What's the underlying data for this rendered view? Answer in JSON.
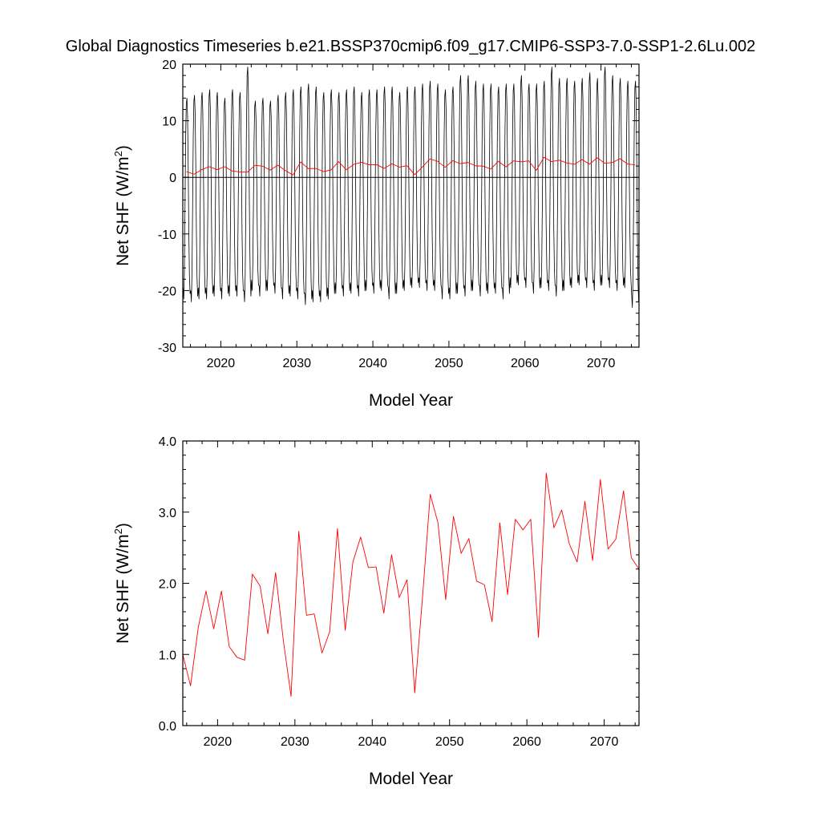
{
  "figure_title": "Global Diagnostics Timeseries b.e21.BSSP370cmip6.f09_g17.CMIP6-SSP3-7.0-SSP1-2.6Lu.002",
  "chart_data": [
    {
      "type": "line",
      "xlabel": "Model Year",
      "ylabel": "Net SHF (W/m",
      "ylabel_sup": "2",
      "ylabel_close": ")",
      "xlim": [
        2015,
        2075
      ],
      "ylim": [
        -30,
        20
      ],
      "xticks": [
        2020,
        2030,
        2040,
        2050,
        2060,
        2070
      ],
      "xtick_labels": [
        "2020",
        "2030",
        "2040",
        "2050",
        "2060",
        "2070"
      ],
      "yticks": [
        -30,
        -20,
        -10,
        0,
        10,
        20
      ],
      "ytick_labels": [
        "-30",
        "-20",
        "-10",
        "0",
        "10",
        "20"
      ],
      "zero_line": 0,
      "series": [
        {
          "color": "#000000",
          "kind": "monthly",
          "start_year": 2015,
          "month_pattern": [
            -20,
            -22,
            -17,
            -5,
            7,
            13,
            14,
            11,
            2,
            -10,
            -18,
            -21
          ],
          "annual_peak": [
            14,
            14.5,
            15,
            15.5,
            15,
            14,
            15.5,
            15,
            19.5,
            13.5,
            14,
            13.5,
            14.5,
            15,
            15.5,
            16,
            16.5,
            16,
            15,
            15.5,
            15,
            15.5,
            16,
            15,
            15.5,
            15.5,
            16,
            16,
            15,
            16,
            16,
            16.5,
            17,
            16.5,
            15.5,
            16,
            18,
            18,
            17,
            16.5,
            16.5,
            16,
            16.5,
            16.5,
            18,
            16.5,
            16.5,
            17,
            19.5,
            17.5,
            17.5,
            17,
            17.5,
            18.5,
            17.5,
            19.5,
            18,
            17.5,
            17,
            17
          ],
          "annual_trough": [
            -21.5,
            -22,
            -21.5,
            -21.5,
            -21,
            -21.5,
            -21,
            -21,
            -22,
            -20,
            -21,
            -20,
            -20.5,
            -21.5,
            -21,
            -21.5,
            -22.5,
            -22,
            -22,
            -21.5,
            -20.5,
            -21,
            -20.5,
            -21,
            -20,
            -20.5,
            -20,
            -21.5,
            -20.5,
            -20,
            -19.5,
            -19.5,
            -20,
            -20,
            -21.5,
            -21.5,
            -20.5,
            -21,
            -20,
            -21,
            -20.5,
            -20.5,
            -21.5,
            -19.5,
            -19,
            -19.5,
            -20.5,
            -19.5,
            -20,
            -21,
            -20,
            -19.5,
            -19,
            -19.5,
            -20,
            -19,
            -19.5,
            -20,
            -19.5,
            -23
          ]
        },
        {
          "color": "#ff0000",
          "kind": "annual",
          "x": [
            2015.5,
            2016.5,
            2017.5,
            2018.5,
            2019.5,
            2020.5,
            2021.5,
            2022.5,
            2023.5,
            2024.5,
            2025.5,
            2026.5,
            2027.5,
            2028.5,
            2029.5,
            2030.5,
            2031.5,
            2032.5,
            2033.5,
            2034.5,
            2035.5,
            2036.5,
            2037.5,
            2038.5,
            2039.5,
            2040.5,
            2041.5,
            2042.5,
            2043.5,
            2044.5,
            2045.5,
            2046.5,
            2047.5,
            2048.5,
            2049.5,
            2050.5,
            2051.5,
            2052.5,
            2053.5,
            2054.5,
            2055.5,
            2056.5,
            2057.5,
            2058.5,
            2059.5,
            2060.5,
            2061.5,
            2062.5,
            2063.5,
            2064.5,
            2065.5,
            2066.5,
            2067.5,
            2068.5,
            2069.5,
            2070.5,
            2071.5,
            2072.5,
            2073.5,
            2074.5
          ],
          "y": [
            1.0,
            0.56,
            1.38,
            1.89,
            1.36,
            1.89,
            1.11,
            0.96,
            0.92,
            2.13,
            1.96,
            1.29,
            2.15,
            1.2,
            0.41,
            2.73,
            1.55,
            1.57,
            1.02,
            1.32,
            2.77,
            1.34,
            2.3,
            2.65,
            2.22,
            2.23,
            1.58,
            2.4,
            1.8,
            2.05,
            0.46,
            1.8,
            3.25,
            2.85,
            1.77,
            2.94,
            2.42,
            2.63,
            2.03,
            1.98,
            1.46,
            2.85,
            1.84,
            2.9,
            2.75,
            2.9,
            1.24,
            3.55,
            2.78,
            3.03,
            2.55,
            2.3,
            3.15,
            2.32,
            3.46,
            2.48,
            2.62,
            3.3,
            2.36,
            2.2
          ]
        }
      ]
    },
    {
      "type": "line",
      "xlabel": "Model Year",
      "ylabel": "Net SHF (W/m",
      "ylabel_sup": "2",
      "ylabel_close": ")",
      "xlim": [
        2015.5,
        2074.5
      ],
      "ylim": [
        0,
        4
      ],
      "xticks": [
        2020,
        2030,
        2040,
        2050,
        2060,
        2070
      ],
      "xtick_labels": [
        "2020",
        "2030",
        "2040",
        "2050",
        "2060",
        "2070"
      ],
      "yticks": [
        0,
        1,
        2,
        3,
        4
      ],
      "ytick_labels": [
        "0.0",
        "1.0",
        "2.0",
        "3.0",
        "4.0"
      ],
      "series": [
        {
          "color": "#ff0000",
          "kind": "annual",
          "x": [
            2015.5,
            2016.5,
            2017.5,
            2018.5,
            2019.5,
            2020.5,
            2021.5,
            2022.5,
            2023.5,
            2024.5,
            2025.5,
            2026.5,
            2027.5,
            2028.5,
            2029.5,
            2030.5,
            2031.5,
            2032.5,
            2033.5,
            2034.5,
            2035.5,
            2036.5,
            2037.5,
            2038.5,
            2039.5,
            2040.5,
            2041.5,
            2042.5,
            2043.5,
            2044.5,
            2045.5,
            2046.5,
            2047.5,
            2048.5,
            2049.5,
            2050.5,
            2051.5,
            2052.5,
            2053.5,
            2054.5,
            2055.5,
            2056.5,
            2057.5,
            2058.5,
            2059.5,
            2060.5,
            2061.5,
            2062.5,
            2063.5,
            2064.5,
            2065.5,
            2066.5,
            2067.5,
            2068.5,
            2069.5,
            2070.5,
            2071.5,
            2072.5,
            2073.5,
            2074.5
          ],
          "y": [
            1.0,
            0.56,
            1.38,
            1.89,
            1.36,
            1.89,
            1.11,
            0.96,
            0.92,
            2.13,
            1.96,
            1.29,
            2.15,
            1.2,
            0.41,
            2.73,
            1.55,
            1.57,
            1.02,
            1.32,
            2.77,
            1.34,
            2.3,
            2.65,
            2.22,
            2.23,
            1.58,
            2.4,
            1.8,
            2.05,
            0.46,
            1.8,
            3.25,
            2.85,
            1.77,
            2.94,
            2.42,
            2.63,
            2.03,
            1.98,
            1.46,
            2.85,
            1.84,
            2.9,
            2.75,
            2.9,
            1.24,
            3.55,
            2.78,
            3.03,
            2.55,
            2.3,
            3.15,
            2.32,
            3.46,
            2.48,
            2.62,
            3.3,
            2.36,
            2.2
          ]
        }
      ]
    }
  ]
}
